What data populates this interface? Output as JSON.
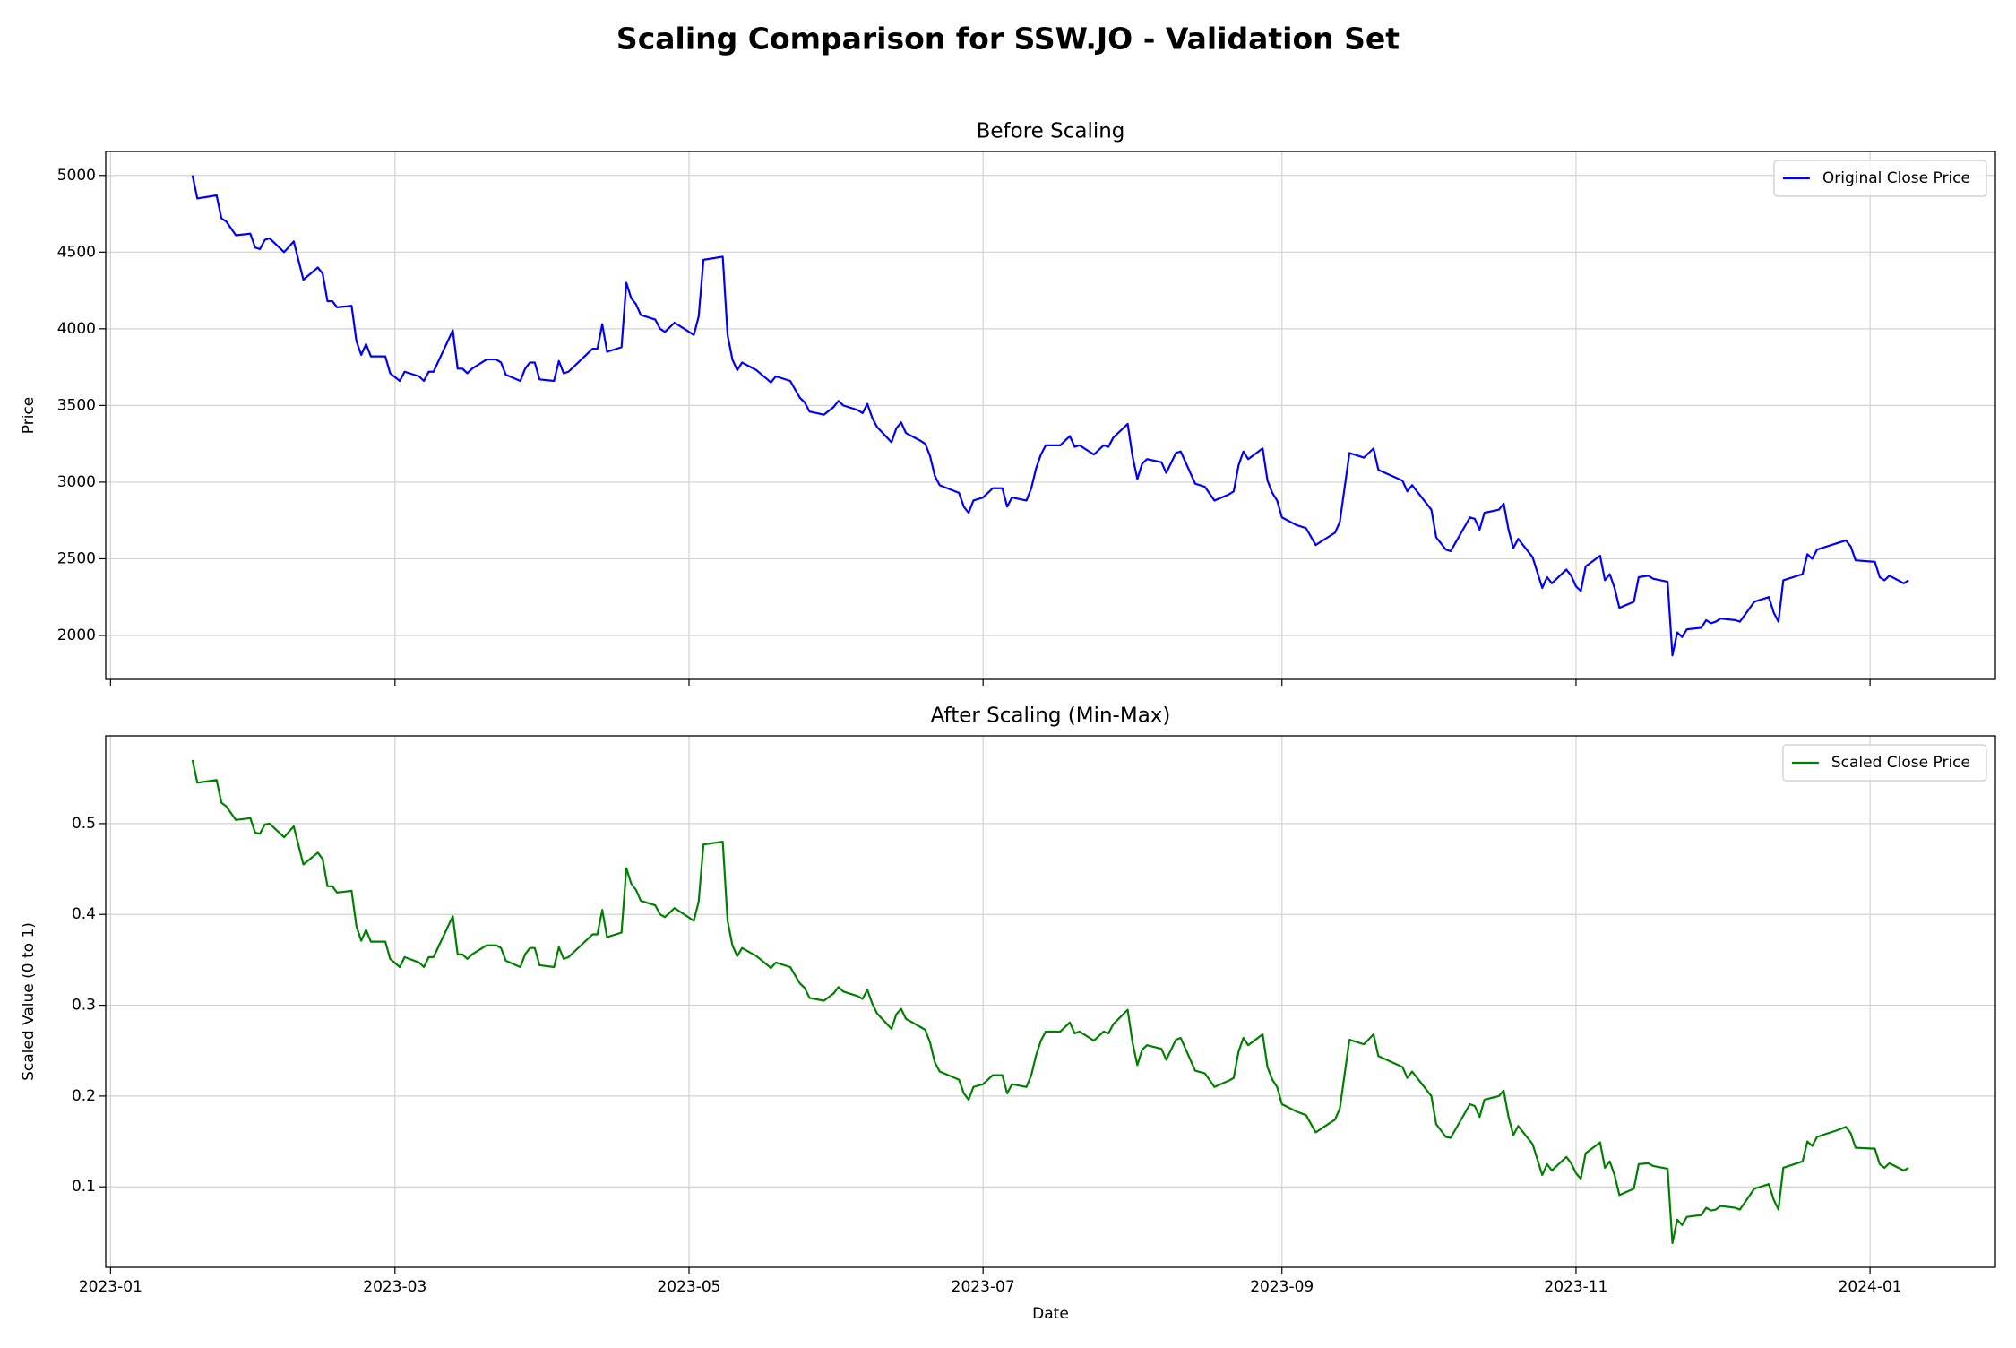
{
  "title": "Scaling Comparison for SSW.JO - Validation Set",
  "chart_data": [
    {
      "type": "line",
      "title": "Before Scaling",
      "ylabel": "Price",
      "legend": "upper right",
      "grid": true,
      "xlim": [
        "2022-12-31",
        "2024-01-27"
      ],
      "xticks": [
        "2023-01-01",
        "2023-03-01",
        "2023-05-01",
        "2023-07-01",
        "2023-09-01",
        "2023-11-01",
        "2024-01-01"
      ],
      "ylim": [
        1713.5,
        5156.5
      ],
      "yticks": [
        2000,
        2500,
        3000,
        3500,
        4000,
        4500,
        5000
      ],
      "x": [
        "2023-01-18",
        "2023-01-19",
        "2023-01-23",
        "2023-01-24",
        "2023-01-25",
        "2023-01-27",
        "2023-01-30",
        "2023-01-31",
        "2023-02-01",
        "2023-02-02",
        "2023-02-03",
        "2023-02-06",
        "2023-02-08",
        "2023-02-10",
        "2023-02-13",
        "2023-02-14",
        "2023-02-15",
        "2023-02-16",
        "2023-02-17",
        "2023-02-20",
        "2023-02-21",
        "2023-02-22",
        "2023-02-23",
        "2023-02-24",
        "2023-02-27",
        "2023-02-28",
        "2023-03-02",
        "2023-03-03",
        "2023-03-06",
        "2023-03-07",
        "2023-03-08",
        "2023-03-09",
        "2023-03-13",
        "2023-03-14",
        "2023-03-15",
        "2023-03-16",
        "2023-03-17",
        "2023-03-20",
        "2023-03-22",
        "2023-03-23",
        "2023-03-24",
        "2023-03-27",
        "2023-03-28",
        "2023-03-29",
        "2023-03-30",
        "2023-03-31",
        "2023-04-03",
        "2023-04-04",
        "2023-04-05",
        "2023-04-06",
        "2023-04-11",
        "2023-04-12",
        "2023-04-13",
        "2023-04-14",
        "2023-04-17",
        "2023-04-18",
        "2023-04-19",
        "2023-04-20",
        "2023-04-21",
        "2023-04-24",
        "2023-04-25",
        "2023-04-26",
        "2023-04-28",
        "2023-05-02",
        "2023-05-03",
        "2023-05-04",
        "2023-05-08",
        "2023-05-09",
        "2023-05-10",
        "2023-05-11",
        "2023-05-12",
        "2023-05-15",
        "2023-05-18",
        "2023-05-19",
        "2023-05-22",
        "2023-05-24",
        "2023-05-25",
        "2023-05-26",
        "2023-05-29",
        "2023-05-31",
        "2023-06-01",
        "2023-06-02",
        "2023-06-05",
        "2023-06-06",
        "2023-06-07",
        "2023-06-08",
        "2023-06-09",
        "2023-06-12",
        "2023-06-13",
        "2023-06-14",
        "2023-06-15",
        "2023-06-18",
        "2023-06-19",
        "2023-06-20",
        "2023-06-21",
        "2023-06-22",
        "2023-06-26",
        "2023-06-27",
        "2023-06-28",
        "2023-06-29",
        "2023-07-01",
        "2023-07-03",
        "2023-07-05",
        "2023-07-06",
        "2023-07-07",
        "2023-07-10",
        "2023-07-11",
        "2023-07-12",
        "2023-07-13",
        "2023-07-14",
        "2023-07-17",
        "2023-07-19",
        "2023-07-20",
        "2023-07-21",
        "2023-07-24",
        "2023-07-26",
        "2023-07-27",
        "2023-07-28",
        "2023-07-31",
        "2023-08-01",
        "2023-08-02",
        "2023-08-03",
        "2023-08-04",
        "2023-08-07",
        "2023-08-08",
        "2023-08-10",
        "2023-08-11",
        "2023-08-14",
        "2023-08-16",
        "2023-08-18",
        "2023-08-21",
        "2023-08-22",
        "2023-08-23",
        "2023-08-24",
        "2023-08-25",
        "2023-08-28",
        "2023-08-29",
        "2023-08-30",
        "2023-08-31",
        "2023-09-01",
        "2023-09-04",
        "2023-09-06",
        "2023-09-08",
        "2023-09-12",
        "2023-09-13",
        "2023-09-15",
        "2023-09-18",
        "2023-09-20",
        "2023-09-21",
        "2023-09-26",
        "2023-09-27",
        "2023-09-28",
        "2023-10-02",
        "2023-10-03",
        "2023-10-04",
        "2023-10-05",
        "2023-10-06",
        "2023-10-10",
        "2023-10-11",
        "2023-10-12",
        "2023-10-13",
        "2023-10-16",
        "2023-10-17",
        "2023-10-18",
        "2023-10-19",
        "2023-10-20",
        "2023-10-23",
        "2023-10-25",
        "2023-10-26",
        "2023-10-27",
        "2023-10-30",
        "2023-10-31",
        "2023-11-01",
        "2023-11-02",
        "2023-11-03",
        "2023-11-06",
        "2023-11-07",
        "2023-11-08",
        "2023-11-09",
        "2023-11-10",
        "2023-11-13",
        "2023-11-14",
        "2023-11-16",
        "2023-11-17",
        "2023-11-20",
        "2023-11-21",
        "2023-11-22",
        "2023-11-23",
        "2023-11-24",
        "2023-11-27",
        "2023-11-28",
        "2023-11-29",
        "2023-11-30",
        "2023-12-01",
        "2023-12-04",
        "2023-12-05",
        "2023-12-08",
        "2023-12-11",
        "2023-12-12",
        "2023-12-13",
        "2023-12-14",
        "2023-12-18",
        "2023-12-19",
        "2023-12-20",
        "2023-12-21",
        "2023-12-25",
        "2023-12-27",
        "2023-12-28",
        "2023-12-29",
        "2024-01-02",
        "2024-01-03",
        "2024-01-04",
        "2024-01-05",
        "2024-01-08",
        "2024-01-09"
      ],
      "series": [
        {
          "name": "Original Close Price",
          "color": "#0000ff",
          "values": [
            5000,
            4850,
            4870,
            4720,
            4700,
            4610,
            4620,
            4530,
            4520,
            4580,
            4590,
            4500,
            4570,
            4320,
            4400,
            4360,
            4180,
            4180,
            4140,
            4150,
            3920,
            3830,
            3900,
            3820,
            3820,
            3710,
            3660,
            3720,
            3690,
            3660,
            3720,
            3720,
            3990,
            3740,
            3740,
            3710,
            3740,
            3800,
            3800,
            3780,
            3700,
            3660,
            3740,
            3780,
            3780,
            3670,
            3660,
            3790,
            3710,
            3720,
            3870,
            3870,
            4030,
            3850,
            3880,
            4300,
            4200,
            4160,
            4090,
            4060,
            4000,
            3980,
            4040,
            3960,
            4080,
            4450,
            4470,
            3960,
            3800,
            3730,
            3780,
            3730,
            3650,
            3690,
            3660,
            3550,
            3520,
            3460,
            3440,
            3490,
            3530,
            3500,
            3470,
            3450,
            3510,
            3420,
            3360,
            3260,
            3350,
            3390,
            3320,
            3270,
            3250,
            3170,
            3040,
            2980,
            2930,
            2840,
            2800,
            2880,
            2900,
            2960,
            2960,
            2840,
            2900,
            2880,
            2960,
            3090,
            3180,
            3240,
            3240,
            3300,
            3230,
            3240,
            3180,
            3240,
            3230,
            3290,
            3380,
            3170,
            3020,
            3120,
            3150,
            3130,
            3060,
            3190,
            3200,
            2990,
            2970,
            2880,
            2920,
            2940,
            3110,
            3200,
            3150,
            3220,
            3010,
            2930,
            2880,
            2770,
            2720,
            2700,
            2590,
            2670,
            2740,
            3190,
            3160,
            3220,
            3080,
            3010,
            2940,
            2980,
            2820,
            2640,
            2600,
            2560,
            2550,
            2770,
            2760,
            2690,
            2800,
            2820,
            2860,
            2690,
            2570,
            2630,
            2510,
            2310,
            2380,
            2340,
            2430,
            2390,
            2320,
            2290,
            2450,
            2520,
            2360,
            2400,
            2310,
            2180,
            2220,
            2380,
            2390,
            2370,
            2350,
            1870,
            2020,
            1990,
            2040,
            2050,
            2100,
            2080,
            2090,
            2110,
            2100,
            2090,
            2220,
            2250,
            2150,
            2090,
            2360,
            2400,
            2530,
            2500,
            2560,
            2600,
            2620,
            2580,
            2490,
            2480,
            2380,
            2360,
            2390,
            2340,
            2360
          ]
        }
      ]
    },
    {
      "type": "line",
      "title": "After Scaling (Min-Max)",
      "xlabel": "Date",
      "ylabel": "Scaled Value (0 to 1)",
      "legend": "upper right",
      "grid": true,
      "xlim": [
        "2022-12-31",
        "2024-01-27"
      ],
      "xticks": [
        {
          "value": "2023-01-01",
          "label": "2023-01"
        },
        {
          "value": "2023-03-01",
          "label": "2023-03"
        },
        {
          "value": "2023-05-01",
          "label": "2023-05"
        },
        {
          "value": "2023-07-01",
          "label": "2023-07"
        },
        {
          "value": "2023-09-01",
          "label": "2023-09"
        },
        {
          "value": "2023-11-01",
          "label": "2023-11"
        },
        {
          "value": "2024-01-01",
          "label": "2024-01"
        }
      ],
      "ylim": [
        0.0114,
        0.5966
      ],
      "yticks": [
        0.1,
        0.2,
        0.3,
        0.4,
        0.5
      ],
      "x": [
        "2023-01-18",
        "2023-01-19",
        "2023-01-23",
        "2023-01-24",
        "2023-01-25",
        "2023-01-27",
        "2023-01-30",
        "2023-01-31",
        "2023-02-01",
        "2023-02-02",
        "2023-02-03",
        "2023-02-06",
        "2023-02-08",
        "2023-02-10",
        "2023-02-13",
        "2023-02-14",
        "2023-02-15",
        "2023-02-16",
        "2023-02-17",
        "2023-02-20",
        "2023-02-21",
        "2023-02-22",
        "2023-02-23",
        "2023-02-24",
        "2023-02-27",
        "2023-02-28",
        "2023-03-02",
        "2023-03-03",
        "2023-03-06",
        "2023-03-07",
        "2023-03-08",
        "2023-03-09",
        "2023-03-13",
        "2023-03-14",
        "2023-03-15",
        "2023-03-16",
        "2023-03-17",
        "2023-03-20",
        "2023-03-22",
        "2023-03-23",
        "2023-03-24",
        "2023-03-27",
        "2023-03-28",
        "2023-03-29",
        "2023-03-30",
        "2023-03-31",
        "2023-04-03",
        "2023-04-04",
        "2023-04-05",
        "2023-04-06",
        "2023-04-11",
        "2023-04-12",
        "2023-04-13",
        "2023-04-14",
        "2023-04-17",
        "2023-04-18",
        "2023-04-19",
        "2023-04-20",
        "2023-04-21",
        "2023-04-24",
        "2023-04-25",
        "2023-04-26",
        "2023-04-28",
        "2023-05-02",
        "2023-05-03",
        "2023-05-04",
        "2023-05-08",
        "2023-05-09",
        "2023-05-10",
        "2023-05-11",
        "2023-05-12",
        "2023-05-15",
        "2023-05-18",
        "2023-05-19",
        "2023-05-22",
        "2023-05-24",
        "2023-05-25",
        "2023-05-26",
        "2023-05-29",
        "2023-05-31",
        "2023-06-01",
        "2023-06-02",
        "2023-06-05",
        "2023-06-06",
        "2023-06-07",
        "2023-06-08",
        "2023-06-09",
        "2023-06-12",
        "2023-06-13",
        "2023-06-14",
        "2023-06-15",
        "2023-06-18",
        "2023-06-19",
        "2023-06-20",
        "2023-06-21",
        "2023-06-22",
        "2023-06-26",
        "2023-06-27",
        "2023-06-28",
        "2023-06-29",
        "2023-07-01",
        "2023-07-03",
        "2023-07-05",
        "2023-07-06",
        "2023-07-07",
        "2023-07-10",
        "2023-07-11",
        "2023-07-12",
        "2023-07-13",
        "2023-07-14",
        "2023-07-17",
        "2023-07-19",
        "2023-07-20",
        "2023-07-21",
        "2023-07-24",
        "2023-07-26",
        "2023-07-27",
        "2023-07-28",
        "2023-07-31",
        "2023-08-01",
        "2023-08-02",
        "2023-08-03",
        "2023-08-04",
        "2023-08-07",
        "2023-08-08",
        "2023-08-10",
        "2023-08-11",
        "2023-08-14",
        "2023-08-16",
        "2023-08-18",
        "2023-08-21",
        "2023-08-22",
        "2023-08-23",
        "2023-08-24",
        "2023-08-25",
        "2023-08-28",
        "2023-08-29",
        "2023-08-30",
        "2023-08-31",
        "2023-09-01",
        "2023-09-04",
        "2023-09-06",
        "2023-09-08",
        "2023-09-12",
        "2023-09-13",
        "2023-09-15",
        "2023-09-18",
        "2023-09-20",
        "2023-09-21",
        "2023-09-26",
        "2023-09-27",
        "2023-09-28",
        "2023-10-02",
        "2023-10-03",
        "2023-10-04",
        "2023-10-05",
        "2023-10-06",
        "2023-10-10",
        "2023-10-11",
        "2023-10-12",
        "2023-10-13",
        "2023-10-16",
        "2023-10-17",
        "2023-10-18",
        "2023-10-19",
        "2023-10-20",
        "2023-10-23",
        "2023-10-25",
        "2023-10-26",
        "2023-10-27",
        "2023-10-30",
        "2023-10-31",
        "2023-11-01",
        "2023-11-02",
        "2023-11-03",
        "2023-11-06",
        "2023-11-07",
        "2023-11-08",
        "2023-11-09",
        "2023-11-10",
        "2023-11-13",
        "2023-11-14",
        "2023-11-16",
        "2023-11-17",
        "2023-11-20",
        "2023-11-21",
        "2023-11-22",
        "2023-11-23",
        "2023-11-24",
        "2023-11-27",
        "2023-11-28",
        "2023-11-29",
        "2023-11-30",
        "2023-12-01",
        "2023-12-04",
        "2023-12-05",
        "2023-12-08",
        "2023-12-11",
        "2023-12-12",
        "2023-12-13",
        "2023-12-14",
        "2023-12-18",
        "2023-12-19",
        "2023-12-20",
        "2023-12-21",
        "2023-12-25",
        "2023-12-27",
        "2023-12-28",
        "2023-12-29",
        "2024-01-02",
        "2024-01-03",
        "2024-01-04",
        "2024-01-05",
        "2024-01-08",
        "2024-01-09"
      ],
      "series": [
        {
          "name": "Scaled Close Price",
          "color": "#008000",
          "values": [
            0.57,
            0.545,
            0.548,
            0.523,
            0.519,
            0.504,
            0.506,
            0.49,
            0.489,
            0.499,
            0.5,
            0.485,
            0.497,
            0.455,
            0.468,
            0.461,
            0.431,
            0.431,
            0.424,
            0.426,
            0.387,
            0.371,
            0.383,
            0.37,
            0.37,
            0.351,
            0.342,
            0.353,
            0.347,
            0.342,
            0.353,
            0.353,
            0.398,
            0.356,
            0.356,
            0.351,
            0.356,
            0.366,
            0.366,
            0.363,
            0.349,
            0.342,
            0.356,
            0.363,
            0.363,
            0.344,
            0.342,
            0.364,
            0.351,
            0.353,
            0.378,
            0.378,
            0.405,
            0.375,
            0.38,
            0.451,
            0.434,
            0.427,
            0.415,
            0.41,
            0.4,
            0.397,
            0.407,
            0.393,
            0.414,
            0.477,
            0.48,
            0.393,
            0.366,
            0.354,
            0.363,
            0.354,
            0.341,
            0.347,
            0.342,
            0.324,
            0.319,
            0.308,
            0.305,
            0.313,
            0.32,
            0.315,
            0.31,
            0.307,
            0.317,
            0.302,
            0.291,
            0.274,
            0.29,
            0.296,
            0.285,
            0.276,
            0.273,
            0.259,
            0.237,
            0.227,
            0.218,
            0.203,
            0.196,
            0.21,
            0.213,
            0.223,
            0.223,
            0.203,
            0.213,
            0.21,
            0.223,
            0.245,
            0.261,
            0.271,
            0.271,
            0.281,
            0.269,
            0.271,
            0.261,
            0.271,
            0.269,
            0.279,
            0.295,
            0.259,
            0.234,
            0.251,
            0.256,
            0.252,
            0.24,
            0.262,
            0.264,
            0.228,
            0.225,
            0.21,
            0.217,
            0.22,
            0.249,
            0.264,
            0.256,
            0.268,
            0.232,
            0.218,
            0.21,
            0.191,
            0.183,
            0.179,
            0.16,
            0.174,
            0.186,
            0.262,
            0.257,
            0.268,
            0.244,
            0.232,
            0.22,
            0.227,
            0.2,
            0.169,
            0.162,
            0.155,
            0.154,
            0.191,
            0.189,
            0.177,
            0.196,
            0.2,
            0.206,
            0.177,
            0.157,
            0.167,
            0.147,
            0.113,
            0.125,
            0.118,
            0.133,
            0.126,
            0.115,
            0.109,
            0.137,
            0.149,
            0.121,
            0.128,
            0.113,
            0.091,
            0.098,
            0.125,
            0.126,
            0.123,
            0.12,
            0.038,
            0.064,
            0.058,
            0.067,
            0.069,
            0.077,
            0.074,
            0.075,
            0.079,
            0.077,
            0.075,
            0.098,
            0.103,
            0.086,
            0.075,
            0.121,
            0.128,
            0.15,
            0.145,
            0.155,
            0.162,
            0.166,
            0.159,
            0.143,
            0.142,
            0.125,
            0.121,
            0.126,
            0.118,
            0.121
          ]
        }
      ]
    }
  ]
}
